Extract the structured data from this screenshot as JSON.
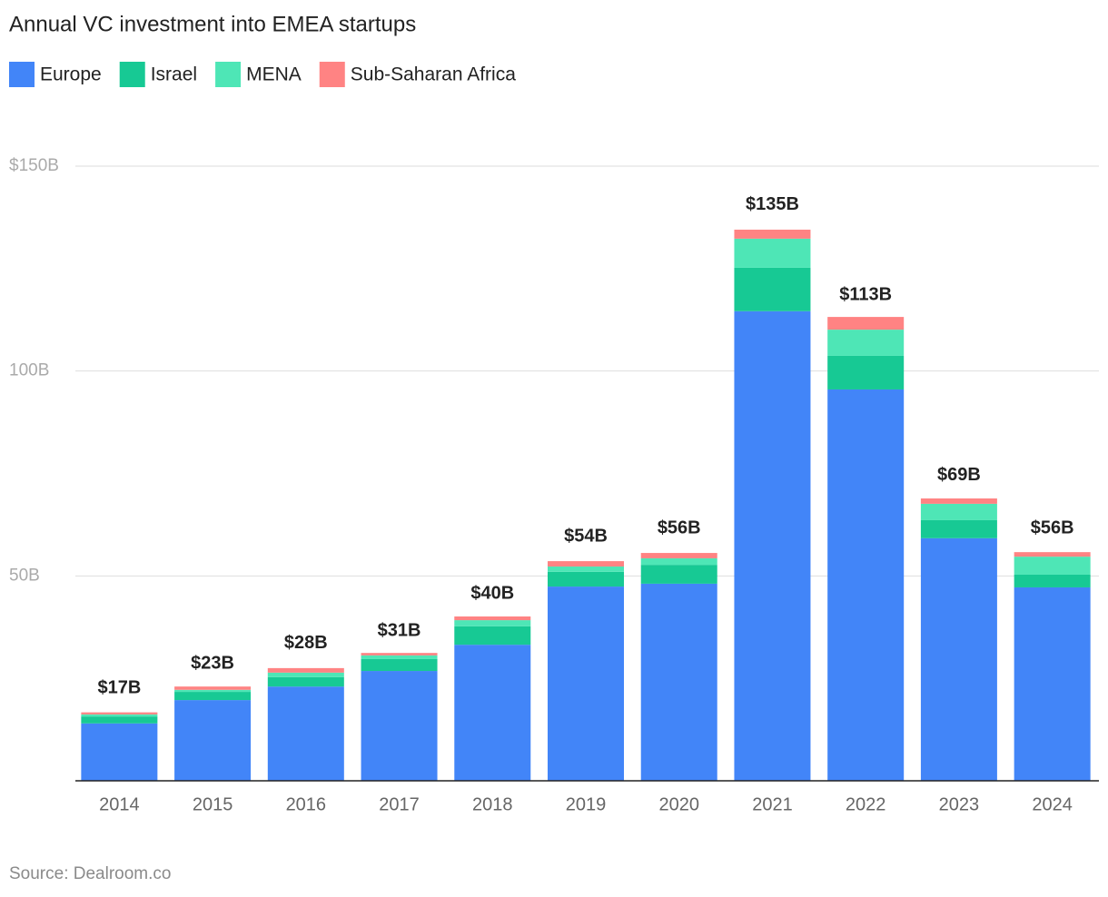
{
  "chart_data": {
    "type": "stacked_bar",
    "title": "Annual VC investment into EMEA startups",
    "source": "Source: Dealroom.co",
    "categories": [
      "2014",
      "2015",
      "2016",
      "2017",
      "2018",
      "2019",
      "2020",
      "2021",
      "2022",
      "2023",
      "2024"
    ],
    "series": [
      {
        "name": "Europe",
        "color": "#4285f8",
        "values": [
          14.0,
          19.7,
          23.0,
          26.8,
          33.2,
          47.4,
          48.1,
          114.6,
          95.5,
          59.2,
          47.2
        ]
      },
      {
        "name": "Israel",
        "color": "#17c994",
        "values": [
          1.7,
          2.0,
          2.3,
          2.9,
          4.5,
          3.6,
          4.6,
          10.6,
          8.2,
          4.4,
          3.1
        ]
      },
      {
        "name": "MENA",
        "color": "#4ee6b6",
        "values": [
          0.5,
          0.5,
          1.1,
          0.9,
          1.5,
          1.3,
          1.6,
          7.1,
          6.4,
          4.0,
          4.4
        ]
      },
      {
        "name": "Sub-Saharan Africa",
        "color": "#ff8383",
        "values": [
          0.5,
          0.8,
          1.1,
          0.6,
          0.9,
          1.3,
          1.3,
          2.2,
          3.1,
          1.3,
          1.1
        ]
      }
    ],
    "totals": {
      "values": [
        17,
        23,
        28,
        31,
        40,
        54,
        56,
        135,
        113,
        69,
        56
      ],
      "value_labels": [
        "$17B",
        "$23B",
        "$28B",
        "$31B",
        "$40B",
        "$54B",
        "$56B",
        "$135B",
        "$113B",
        "$69B",
        "$56B"
      ]
    },
    "ylim": [
      0,
      150
    ],
    "yticks": [
      {
        "value": 50,
        "label": "50B"
      },
      {
        "value": 100,
        "label": "100B"
      },
      {
        "value": 150,
        "label": "$150B"
      }
    ],
    "grid": true,
    "legend": "top"
  }
}
